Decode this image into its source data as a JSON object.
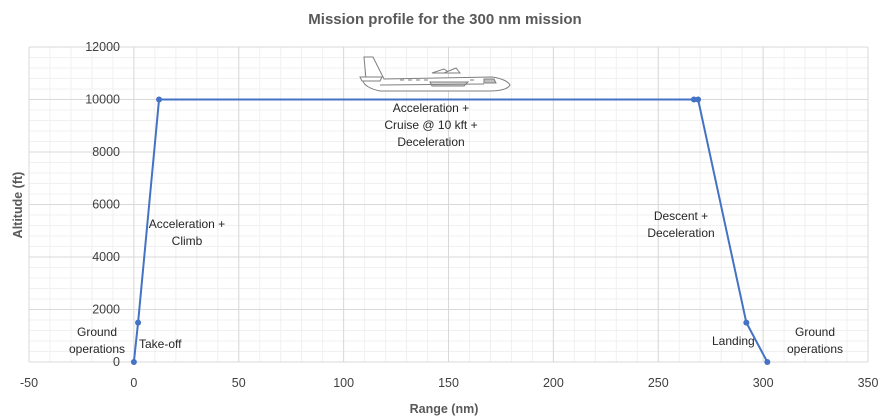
{
  "chart_data": {
    "type": "line",
    "title": "Mission profile for the 300 nm mission",
    "xlabel": "Range (nm)",
    "ylabel": "Altitude (ft)",
    "xlim": [
      -50,
      350
    ],
    "ylim": [
      0,
      12000
    ],
    "x_ticks": [
      "-50",
      "0",
      "50",
      "100",
      "150",
      "200",
      "250",
      "300",
      "350"
    ],
    "y_ticks": [
      "0",
      "2000",
      "4000",
      "6000",
      "8000",
      "10000",
      "12000"
    ],
    "grid": true,
    "legend": "none",
    "series": [
      {
        "color": "#4472c4",
        "points": [
          {
            "x": 0,
            "y": 0
          },
          {
            "x": 2,
            "y": 1500
          },
          {
            "x": 12,
            "y": 10000
          },
          {
            "x": 267,
            "y": 10000
          },
          {
            "x": 269,
            "y": 10000
          },
          {
            "x": 292,
            "y": 1500
          },
          {
            "x": 302,
            "y": 0
          }
        ]
      }
    ],
    "annotations": [
      {
        "lines": [
          "Ground",
          "operations"
        ]
      },
      {
        "lines": [
          "Take-off"
        ]
      },
      {
        "lines": [
          "Acceleration +",
          "Climb"
        ]
      },
      {
        "lines": [
          "Acceleration +",
          "Cruise @ 10 kft +",
          "Deceleration"
        ]
      },
      {
        "lines": [
          "Descent +",
          "Deceleration"
        ]
      },
      {
        "lines": [
          "Landing"
        ]
      },
      {
        "lines": [
          "Ground",
          "operations"
        ]
      }
    ]
  },
  "decoration": {
    "icon": "airplane-icon"
  }
}
